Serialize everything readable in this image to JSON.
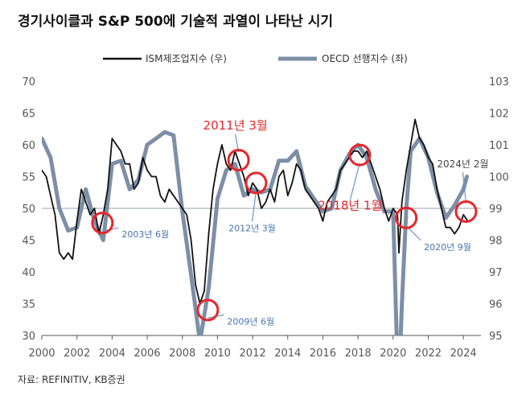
{
  "title": "경기사이클과 S&P 500에 기술적 과열이 나타난 시기",
  "source": "자료: REFINITIV, KB증권",
  "chart_data": {
    "type": "line",
    "title": "경기사이클과 S&P 500에 기술적 과열이 나타난 시기",
    "legend_position": "top-right",
    "x_range": [
      2000,
      2025
    ],
    "x_ticks": [
      "2000",
      "2002",
      "2004",
      "2006",
      "2008",
      "2010",
      "2012",
      "2014",
      "2016",
      "2018",
      "2020",
      "2022",
      "2024"
    ],
    "y_left": {
      "range": [
        30,
        70
      ],
      "ticks": [
        "30",
        "35",
        "40",
        "45",
        "50",
        "55",
        "60",
        "65",
        "70"
      ]
    },
    "y_right": {
      "range": [
        95,
        103
      ],
      "ticks": [
        "95",
        "96",
        "97",
        "98",
        "99",
        "100",
        "101",
        "102",
        "103"
      ]
    },
    "reference_line": {
      "axis": "left",
      "value": 50
    },
    "series": [
      {
        "name": "ISM제조업지수 (우)",
        "axis": "left",
        "color": "#111111",
        "x": [
          2000.0,
          2000.25,
          2000.5,
          2000.75,
          2001.0,
          2001.25,
          2001.5,
          2001.75,
          2002.0,
          2002.25,
          2002.5,
          2002.75,
          2003.0,
          2003.25,
          2003.5,
          2003.75,
          2004.0,
          2004.25,
          2004.5,
          2004.75,
          2005.0,
          2005.25,
          2005.5,
          2005.75,
          2006.0,
          2006.25,
          2006.5,
          2006.75,
          2007.0,
          2007.25,
          2007.5,
          2007.75,
          2008.0,
          2008.25,
          2008.5,
          2008.75,
          2009.0,
          2009.25,
          2009.5,
          2009.75,
          2010.0,
          2010.25,
          2010.5,
          2010.75,
          2011.0,
          2011.25,
          2011.5,
          2011.75,
          2012.0,
          2012.25,
          2012.5,
          2012.75,
          2013.0,
          2013.25,
          2013.5,
          2013.75,
          2014.0,
          2014.25,
          2014.5,
          2014.75,
          2015.0,
          2015.25,
          2015.5,
          2015.75,
          2016.0,
          2016.25,
          2016.5,
          2016.75,
          2017.0,
          2017.25,
          2017.5,
          2017.75,
          2018.0,
          2018.25,
          2018.5,
          2018.75,
          2019.0,
          2019.25,
          2019.5,
          2019.75,
          2020.0,
          2020.25,
          2020.33,
          2020.5,
          2020.75,
          2021.0,
          2021.25,
          2021.5,
          2021.75,
          2022.0,
          2022.25,
          2022.5,
          2022.75,
          2023.0,
          2023.25,
          2023.5,
          2023.75,
          2024.0,
          2024.25
        ],
        "values": [
          56,
          55,
          52,
          49,
          43,
          42,
          43,
          42,
          48,
          53,
          51,
          49,
          50,
          46,
          49,
          53,
          61,
          60,
          59,
          57,
          57,
          53,
          54,
          58,
          56,
          55,
          55,
          52,
          51,
          53,
          52,
          51,
          50,
          49,
          45,
          38,
          35,
          37,
          46,
          53,
          57,
          60,
          57,
          56,
          59,
          57,
          55,
          52,
          54,
          53,
          50,
          51,
          53,
          51,
          55,
          56,
          52,
          54,
          57,
          56,
          53,
          52,
          51,
          50,
          48,
          51,
          52,
          53,
          56,
          57,
          58,
          59,
          59,
          58,
          59,
          57,
          55,
          53,
          50,
          48,
          50,
          49,
          43,
          51,
          56,
          60,
          64,
          61,
          60,
          58,
          57,
          53,
          50,
          47,
          47,
          46,
          47,
          49,
          48
        ]
      },
      {
        "name": "OECD 선행지수 (좌)",
        "axis": "right",
        "color": "#7d8fa7",
        "x": [
          2000.0,
          2000.5,
          2001.0,
          2001.5,
          2002.0,
          2002.5,
          2003.0,
          2003.5,
          2004.0,
          2004.5,
          2005.0,
          2005.5,
          2006.0,
          2006.5,
          2007.0,
          2007.5,
          2008.0,
          2008.5,
          2009.0,
          2009.5,
          2010.0,
          2010.5,
          2011.0,
          2011.5,
          2012.0,
          2012.5,
          2013.0,
          2013.5,
          2014.0,
          2014.5,
          2015.0,
          2015.5,
          2016.0,
          2016.5,
          2017.0,
          2017.5,
          2018.0,
          2018.5,
          2019.0,
          2019.5,
          2020.0,
          2020.3,
          2020.5,
          2020.75,
          2021.0,
          2021.5,
          2022.0,
          2022.5,
          2023.0,
          2023.5,
          2024.0,
          2024.2
        ],
        "values": [
          101.2,
          100.6,
          99.0,
          98.3,
          98.4,
          99.6,
          98.6,
          98.0,
          100.4,
          100.5,
          99.6,
          99.9,
          101.0,
          101.2,
          101.4,
          101.3,
          98.9,
          96.9,
          94.8,
          96.5,
          99.3,
          100.2,
          100.4,
          99.4,
          99.6,
          99.5,
          99.6,
          100.5,
          100.5,
          100.8,
          99.7,
          99.3,
          98.9,
          99.0,
          100.2,
          100.7,
          101.0,
          100.6,
          99.6,
          98.9,
          98.9,
          93.0,
          96.0,
          99.0,
          100.8,
          101.2,
          100.6,
          99.5,
          98.7,
          99.1,
          99.6,
          100.0
        ]
      }
    ],
    "annotations": [
      {
        "label": "2003년 6월",
        "x": 2003.45,
        "y": 47.7
      },
      {
        "label": "2009년 6월",
        "x": 2009.45,
        "y": 34.0
      },
      {
        "label": "2011년 3월",
        "x": 2011.2,
        "y": 57.6
      },
      {
        "label": "2012년 3월",
        "x": 2012.2,
        "y": 54.0
      },
      {
        "label": "2018년 1월",
        "x": 2018.1,
        "y": 58.4
      },
      {
        "label": "2020년 9월",
        "x": 2020.75,
        "y": 48.5
      },
      {
        "label": "2024년 2월",
        "x": 2024.15,
        "y": 49.5
      }
    ]
  }
}
